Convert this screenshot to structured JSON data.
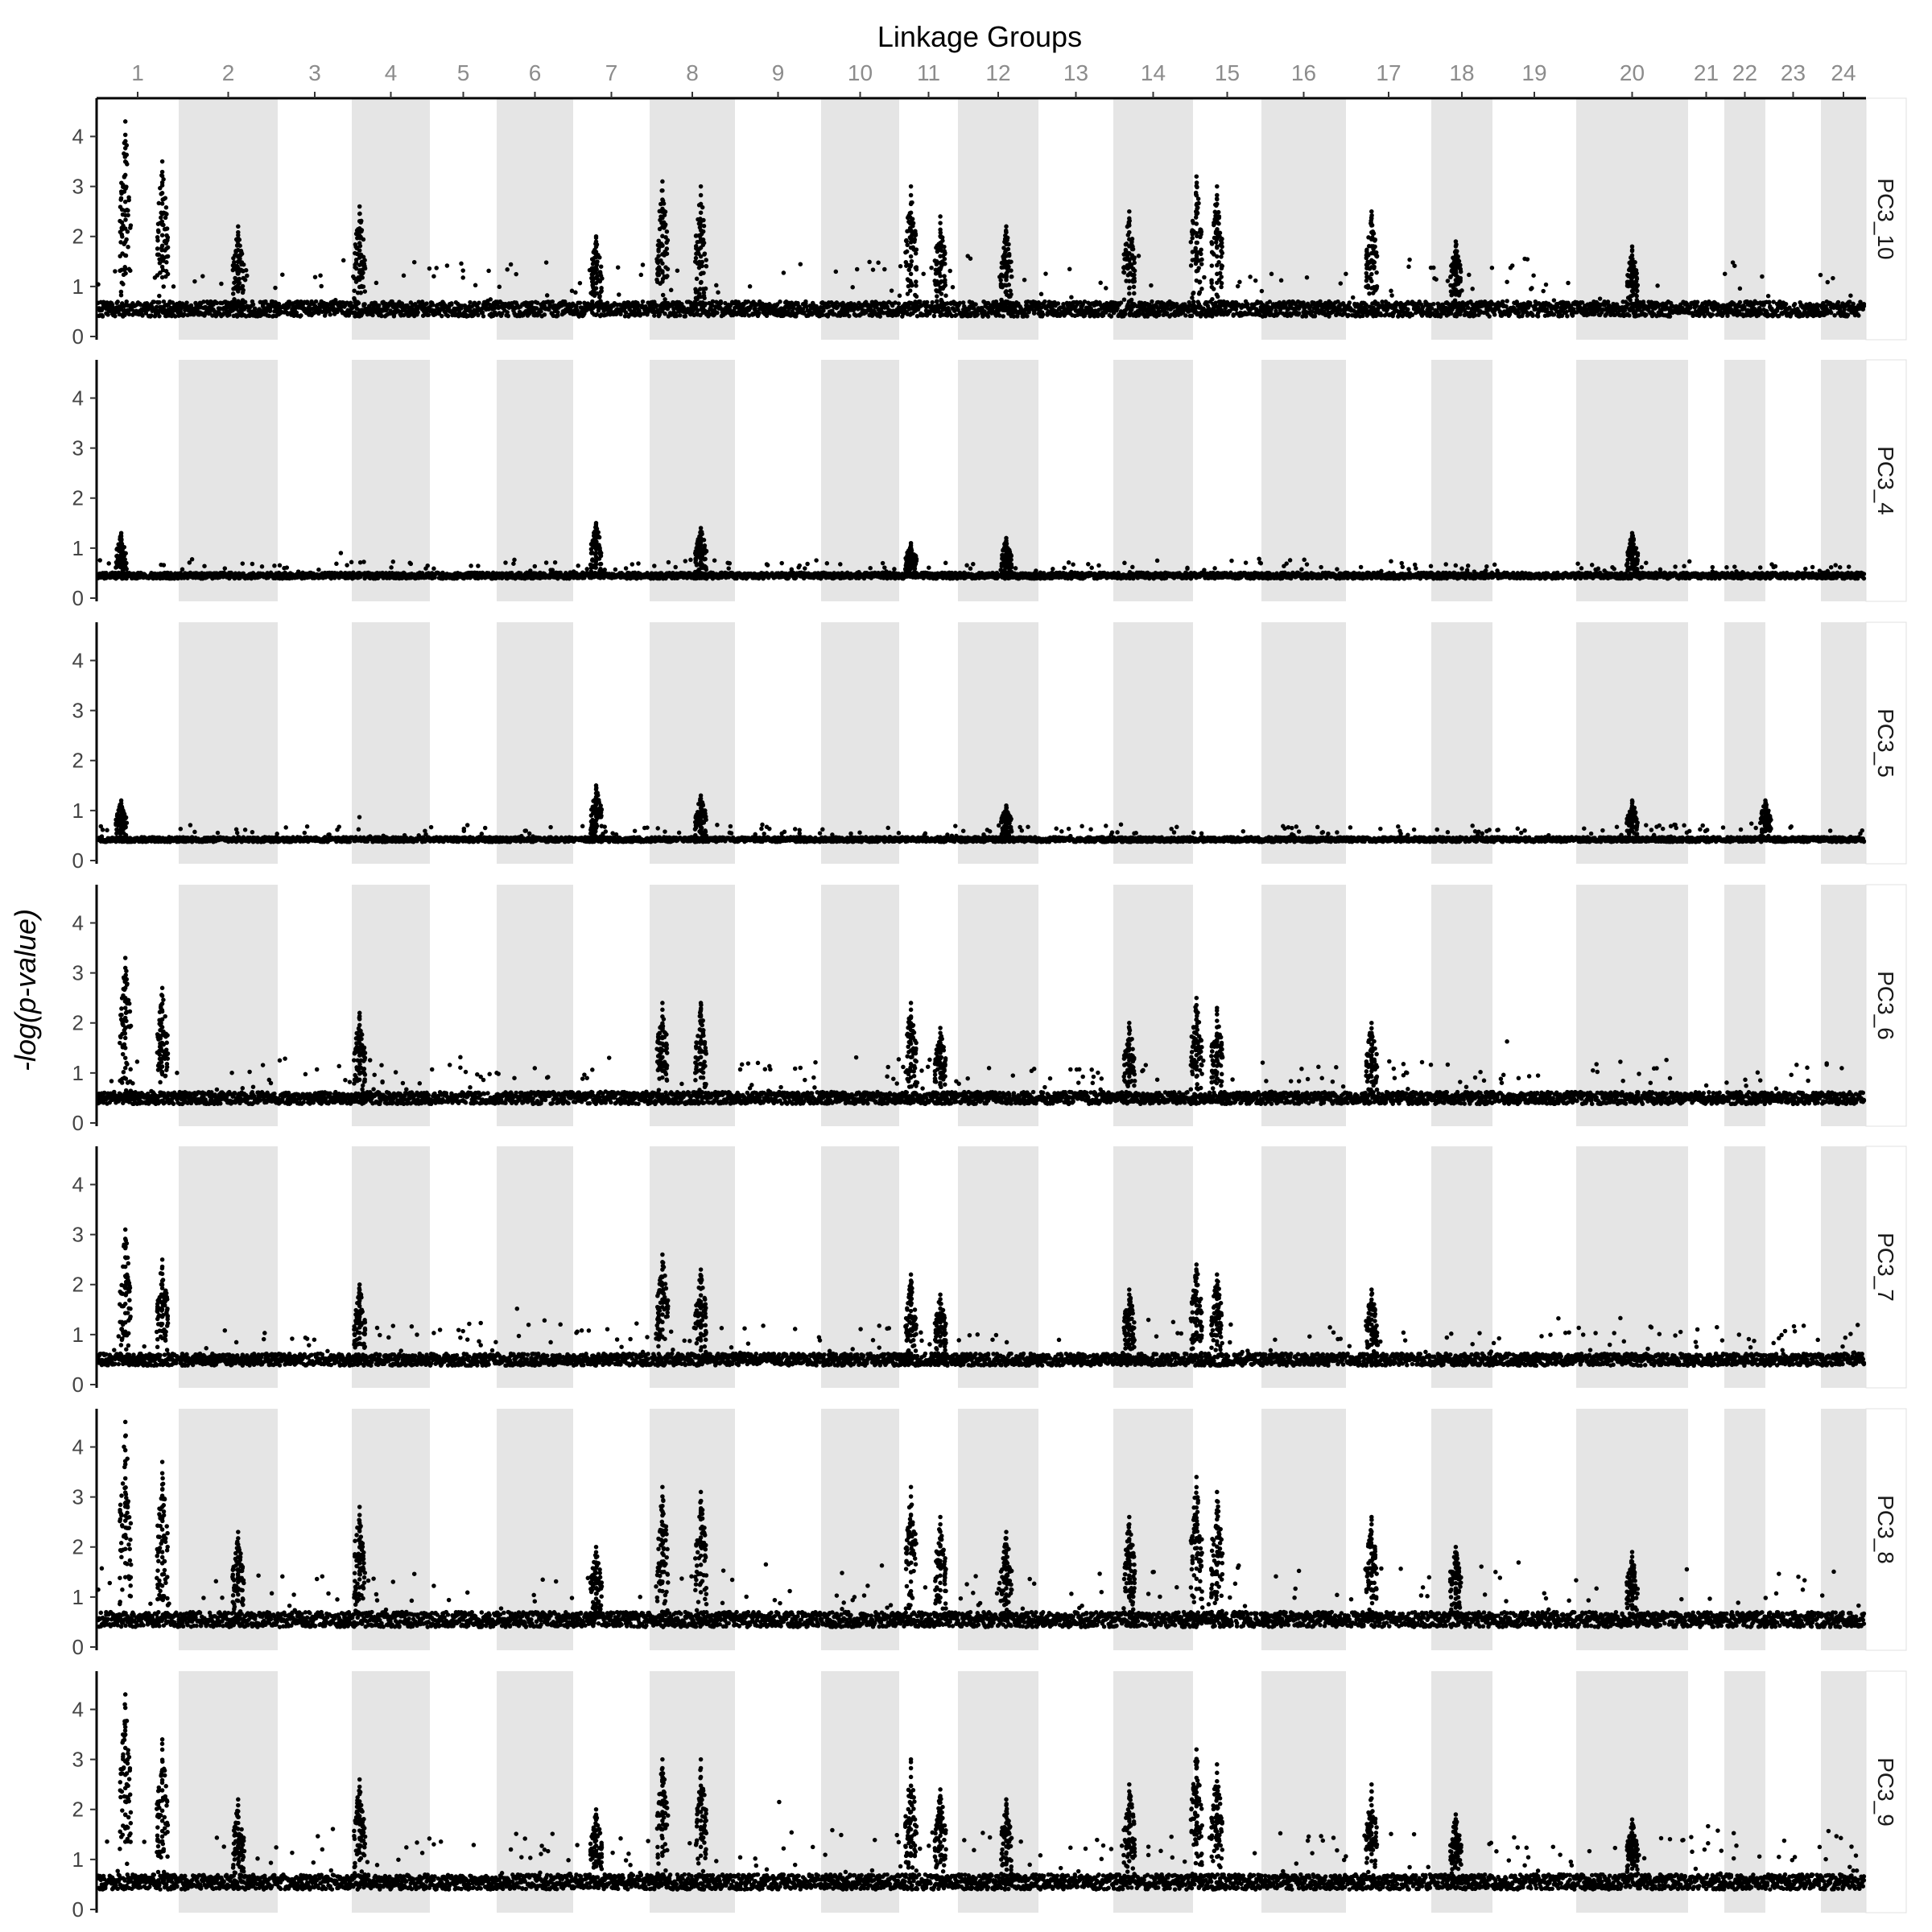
{
  "chart_data": {
    "type": "scatter",
    "title": "Linkage Groups",
    "ylabel": "-log(p-value)",
    "xlabel": "",
    "ylim": [
      0,
      4.7
    ],
    "y_ticks": [
      0,
      1,
      2,
      3,
      4
    ],
    "grid": false,
    "background_bands": "alternating grey/white per linkage group",
    "linkage_groups": [
      {
        "label": "1",
        "shade": false
      },
      {
        "label": "2",
        "shade": true
      },
      {
        "label": "3",
        "shade": false
      },
      {
        "label": "4",
        "shade": true
      },
      {
        "label": "5",
        "shade": false
      },
      {
        "label": "6",
        "shade": true
      },
      {
        "label": "7",
        "shade": false
      },
      {
        "label": "8",
        "shade": true
      },
      {
        "label": "9",
        "shade": false
      },
      {
        "label": "10",
        "shade": true
      },
      {
        "label": "11",
        "shade": false
      },
      {
        "label": "12",
        "shade": true
      },
      {
        "label": "13",
        "shade": false
      },
      {
        "label": "14",
        "shade": true
      },
      {
        "label": "15",
        "shade": false
      },
      {
        "label": "16",
        "shade": true
      },
      {
        "label": "17",
        "shade": false
      },
      {
        "label": "18",
        "shade": true
      },
      {
        "label": "19",
        "shade": false
      },
      {
        "label": "20",
        "shade": true
      },
      {
        "label": "21",
        "shade": false
      },
      {
        "label": "22",
        "shade": true
      },
      {
        "label": "23",
        "shade": false
      },
      {
        "label": "24",
        "shade": true
      }
    ],
    "panels": [
      {
        "name": "PC3_10",
        "base": 0.55,
        "noise": 0.25,
        "scale": 1.0,
        "peaks": [
          [
            0.8,
            3.5
          ],
          [
            1.35,
            4.3
          ],
          [
            2.6,
            2.2
          ],
          [
            4.1,
            2.6
          ],
          [
            7.3,
            2.0
          ],
          [
            8.15,
            3.1
          ],
          [
            8.6,
            3.0
          ],
          [
            11.2,
            3.0
          ],
          [
            11.7,
            2.4
          ],
          [
            12.6,
            2.2
          ],
          [
            14.2,
            2.5
          ],
          [
            15.05,
            3.2
          ],
          [
            15.35,
            3.0
          ],
          [
            17.3,
            2.5
          ],
          [
            18.4,
            1.9
          ],
          [
            20.5,
            1.8
          ]
        ]
      },
      {
        "name": "PC3_4",
        "base": 0.45,
        "noise": 0.1,
        "scale": 0.3,
        "peaks": [
          [
            1.3,
            1.3
          ],
          [
            7.3,
            1.5
          ],
          [
            8.6,
            1.4
          ],
          [
            11.2,
            1.1
          ],
          [
            12.6,
            1.2
          ],
          [
            20.5,
            1.3
          ]
        ]
      },
      {
        "name": "PC3_5",
        "base": 0.42,
        "noise": 0.08,
        "scale": 0.28,
        "peaks": [
          [
            1.3,
            1.2
          ],
          [
            7.3,
            1.5
          ],
          [
            8.6,
            1.3
          ],
          [
            12.6,
            1.1
          ],
          [
            20.5,
            1.2
          ],
          [
            23.0,
            1.2
          ]
        ]
      },
      {
        "name": "PC3_6",
        "base": 0.5,
        "noise": 0.2,
        "scale": 0.75,
        "peaks": [
          [
            0.8,
            2.7
          ],
          [
            1.35,
            3.3
          ],
          [
            4.1,
            2.2
          ],
          [
            8.15,
            2.4
          ],
          [
            8.6,
            2.4
          ],
          [
            11.2,
            2.4
          ],
          [
            11.7,
            1.9
          ],
          [
            14.2,
            2.0
          ],
          [
            15.05,
            2.5
          ],
          [
            15.35,
            2.3
          ],
          [
            17.3,
            2.0
          ]
        ]
      },
      {
        "name": "PC3_7",
        "base": 0.5,
        "noise": 0.2,
        "scale": 0.75,
        "peaks": [
          [
            0.8,
            2.5
          ],
          [
            1.35,
            3.1
          ],
          [
            4.1,
            2.0
          ],
          [
            8.15,
            2.6
          ],
          [
            8.6,
            2.3
          ],
          [
            11.2,
            2.2
          ],
          [
            11.7,
            1.8
          ],
          [
            14.2,
            1.9
          ],
          [
            15.05,
            2.4
          ],
          [
            15.35,
            2.2
          ],
          [
            17.3,
            1.9
          ]
        ]
      },
      {
        "name": "PC3_8",
        "base": 0.55,
        "noise": 0.25,
        "scale": 1.05,
        "peaks": [
          [
            0.8,
            3.7
          ],
          [
            1.35,
            4.5
          ],
          [
            2.6,
            2.3
          ],
          [
            4.1,
            2.8
          ],
          [
            7.3,
            2.0
          ],
          [
            8.15,
            3.2
          ],
          [
            8.6,
            3.1
          ],
          [
            11.2,
            3.2
          ],
          [
            11.7,
            2.6
          ],
          [
            12.6,
            2.3
          ],
          [
            14.2,
            2.6
          ],
          [
            15.05,
            3.4
          ],
          [
            15.35,
            3.1
          ],
          [
            17.3,
            2.6
          ],
          [
            18.4,
            2.0
          ],
          [
            20.5,
            1.9
          ]
        ]
      },
      {
        "name": "PC3_9",
        "base": 0.55,
        "noise": 0.25,
        "scale": 1.0,
        "peaks": [
          [
            0.8,
            3.4
          ],
          [
            1.35,
            4.3
          ],
          [
            2.6,
            2.2
          ],
          [
            4.1,
            2.6
          ],
          [
            7.3,
            2.0
          ],
          [
            8.15,
            3.0
          ],
          [
            8.6,
            3.0
          ],
          [
            11.2,
            3.0
          ],
          [
            11.7,
            2.4
          ],
          [
            12.6,
            2.2
          ],
          [
            14.2,
            2.5
          ],
          [
            15.05,
            3.2
          ],
          [
            15.35,
            2.9
          ],
          [
            17.3,
            2.5
          ],
          [
            18.4,
            1.9
          ],
          [
            20.5,
            1.8
          ]
        ]
      }
    ]
  }
}
